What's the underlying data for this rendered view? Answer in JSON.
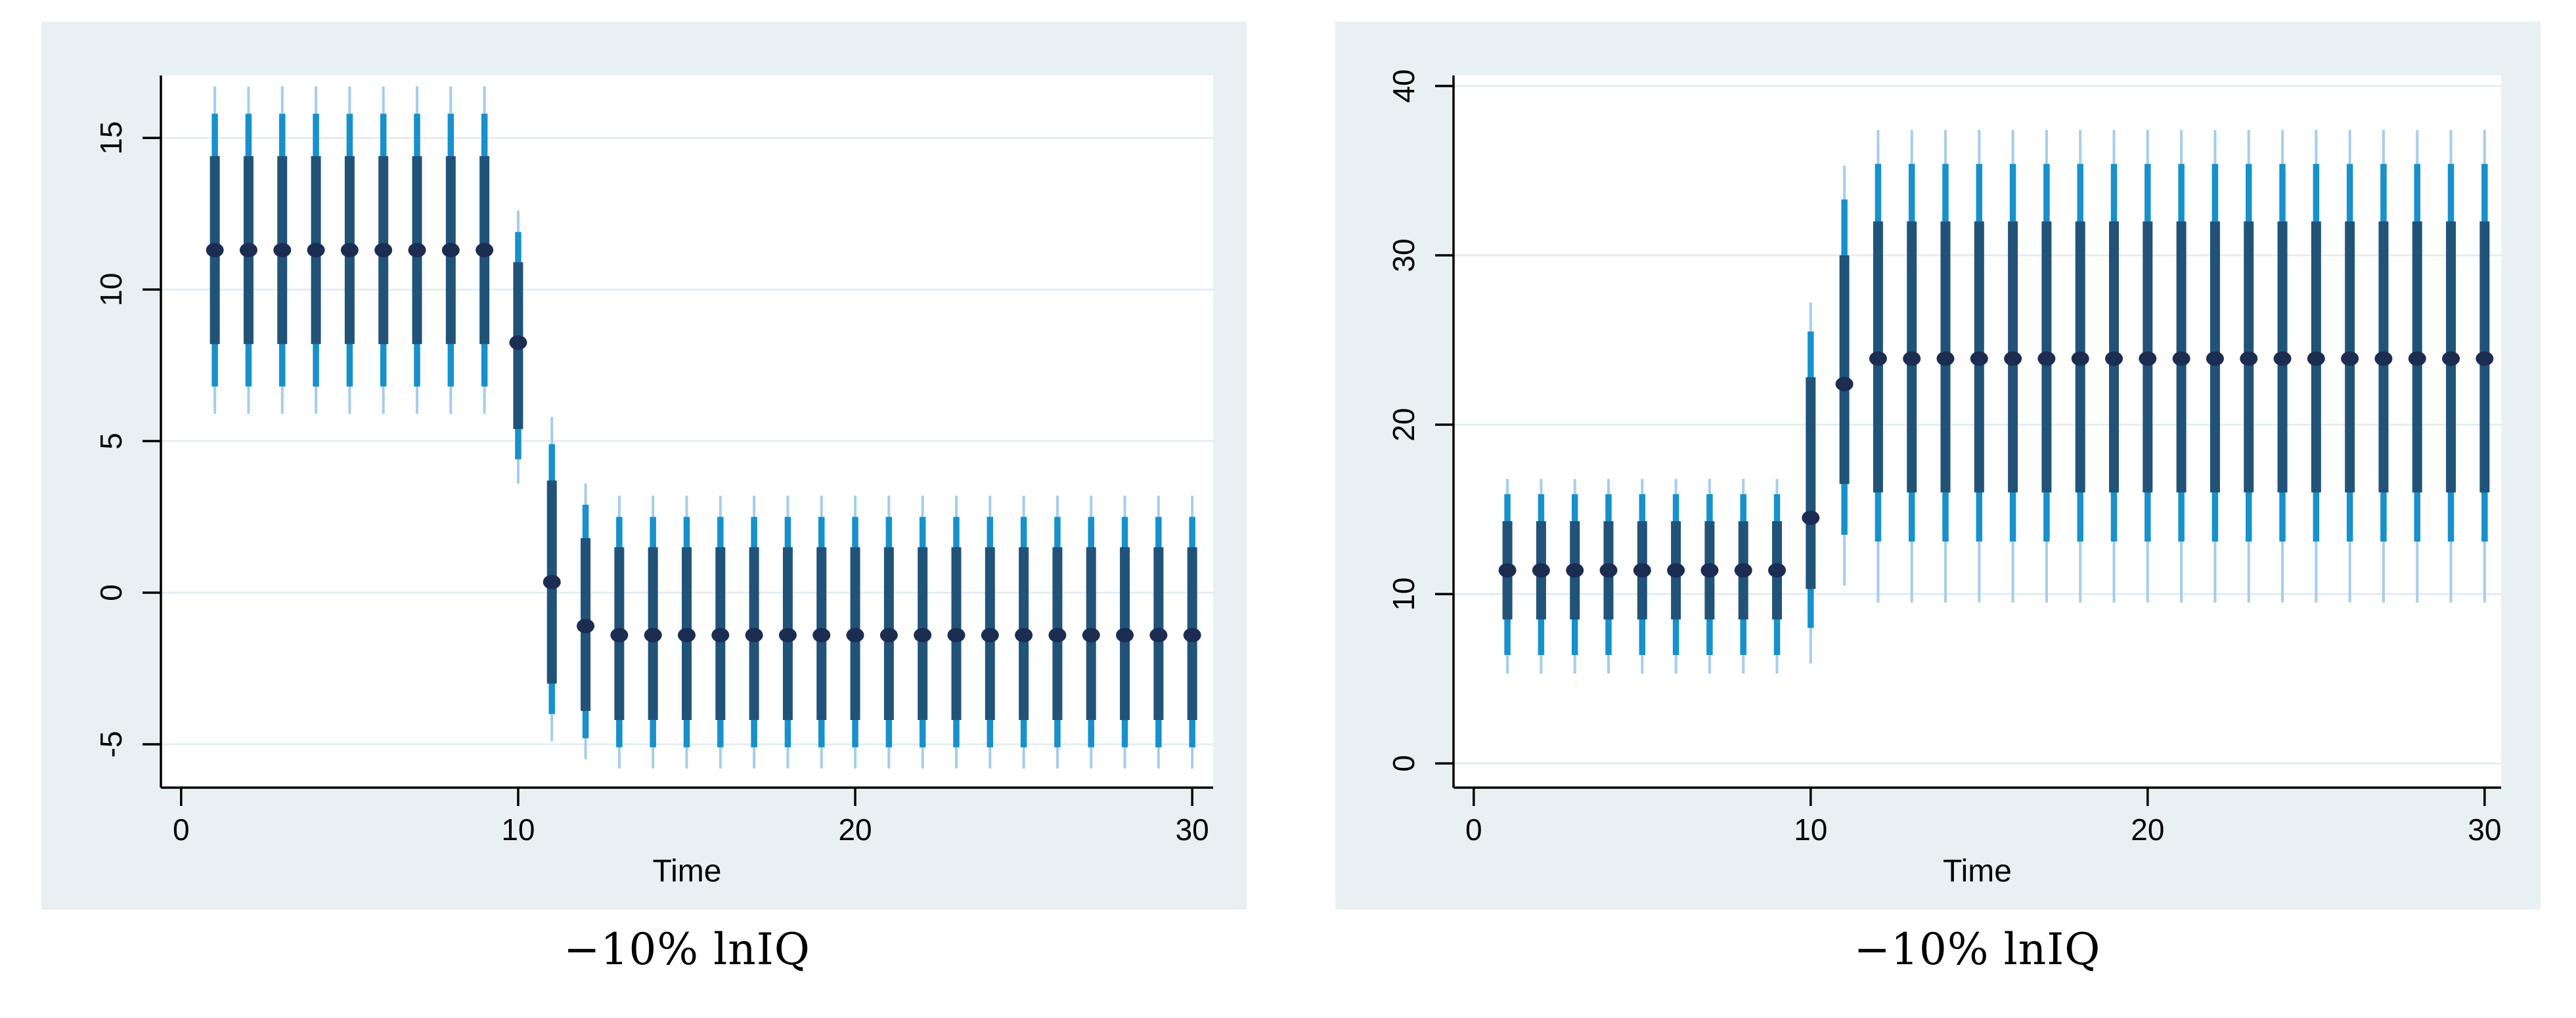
{
  "page": {
    "background": "#ffffff"
  },
  "style": {
    "panel_bg": "#e9f0f3",
    "plot_bg": "#ffffff",
    "gridline_color": "#e3ecf1",
    "axis_color": "#000000",
    "point_color": "#1c2d52",
    "inner_interval_color": "#215379",
    "mid_interval_color": "#1691cb",
    "outer_interval_color": "#a6cdea",
    "tick_label_color": "#000000"
  },
  "chart_data": [
    {
      "type": "errorbar",
      "caption": "−10% lnIQ",
      "xlabel": "Time",
      "ylabel": "",
      "legend": "none",
      "grid": true,
      "x_ticks": [
        0,
        10,
        20,
        30
      ],
      "y_ticks": [
        15,
        10,
        5,
        0,
        -5
      ],
      "xlim": [
        -0.6,
        30.62
      ],
      "ylim": [
        -6.43,
        17.06
      ],
      "points": [
        {
          "t": 1,
          "p": 11.3,
          "inner": [
            8.2,
            14.4
          ],
          "mid": [
            6.8,
            15.8
          ],
          "outer": [
            5.9,
            16.7
          ]
        },
        {
          "t": 2,
          "p": 11.3,
          "inner": [
            8.2,
            14.4
          ],
          "mid": [
            6.8,
            15.8
          ],
          "outer": [
            5.9,
            16.7
          ]
        },
        {
          "t": 3,
          "p": 11.3,
          "inner": [
            8.2,
            14.4
          ],
          "mid": [
            6.8,
            15.8
          ],
          "outer": [
            5.9,
            16.7
          ]
        },
        {
          "t": 4,
          "p": 11.3,
          "inner": [
            8.2,
            14.4
          ],
          "mid": [
            6.8,
            15.8
          ],
          "outer": [
            5.9,
            16.7
          ]
        },
        {
          "t": 5,
          "p": 11.3,
          "inner": [
            8.2,
            14.4
          ],
          "mid": [
            6.8,
            15.8
          ],
          "outer": [
            5.9,
            16.7
          ]
        },
        {
          "t": 6,
          "p": 11.3,
          "inner": [
            8.2,
            14.4
          ],
          "mid": [
            6.8,
            15.8
          ],
          "outer": [
            5.9,
            16.7
          ]
        },
        {
          "t": 7,
          "p": 11.3,
          "inner": [
            8.2,
            14.4
          ],
          "mid": [
            6.8,
            15.8
          ],
          "outer": [
            5.9,
            16.7
          ]
        },
        {
          "t": 8,
          "p": 11.3,
          "inner": [
            8.2,
            14.4
          ],
          "mid": [
            6.8,
            15.8
          ],
          "outer": [
            5.9,
            16.7
          ]
        },
        {
          "t": 9,
          "p": 11.3,
          "inner": [
            8.2,
            14.4
          ],
          "mid": [
            6.8,
            15.8
          ],
          "outer": [
            5.9,
            16.7
          ]
        },
        {
          "t": 10,
          "p": 8.25,
          "inner": [
            5.4,
            10.9
          ],
          "mid": [
            4.4,
            11.9
          ],
          "outer": [
            3.6,
            12.6
          ]
        },
        {
          "t": 11,
          "p": 0.35,
          "inner": [
            -3.0,
            3.7
          ],
          "mid": [
            -4.0,
            4.9
          ],
          "outer": [
            -4.9,
            5.8
          ]
        },
        {
          "t": 12,
          "p": -1.1,
          "inner": [
            -3.9,
            1.8
          ],
          "mid": [
            -4.8,
            2.9
          ],
          "outer": [
            -5.5,
            3.6
          ]
        },
        {
          "t": 13,
          "p": -1.4,
          "inner": [
            -4.2,
            1.5
          ],
          "mid": [
            -5.1,
            2.5
          ],
          "outer": [
            -5.8,
            3.2
          ]
        },
        {
          "t": 14,
          "p": -1.4,
          "inner": [
            -4.2,
            1.5
          ],
          "mid": [
            -5.1,
            2.5
          ],
          "outer": [
            -5.8,
            3.2
          ]
        },
        {
          "t": 15,
          "p": -1.4,
          "inner": [
            -4.2,
            1.5
          ],
          "mid": [
            -5.1,
            2.5
          ],
          "outer": [
            -5.8,
            3.2
          ]
        },
        {
          "t": 16,
          "p": -1.4,
          "inner": [
            -4.2,
            1.5
          ],
          "mid": [
            -5.1,
            2.5
          ],
          "outer": [
            -5.8,
            3.2
          ]
        },
        {
          "t": 17,
          "p": -1.4,
          "inner": [
            -4.2,
            1.5
          ],
          "mid": [
            -5.1,
            2.5
          ],
          "outer": [
            -5.8,
            3.2
          ]
        },
        {
          "t": 18,
          "p": -1.4,
          "inner": [
            -4.2,
            1.5
          ],
          "mid": [
            -5.1,
            2.5
          ],
          "outer": [
            -5.8,
            3.2
          ]
        },
        {
          "t": 19,
          "p": -1.4,
          "inner": [
            -4.2,
            1.5
          ],
          "mid": [
            -5.1,
            2.5
          ],
          "outer": [
            -5.8,
            3.2
          ]
        },
        {
          "t": 20,
          "p": -1.4,
          "inner": [
            -4.2,
            1.5
          ],
          "mid": [
            -5.1,
            2.5
          ],
          "outer": [
            -5.8,
            3.2
          ]
        },
        {
          "t": 21,
          "p": -1.4,
          "inner": [
            -4.2,
            1.5
          ],
          "mid": [
            -5.1,
            2.5
          ],
          "outer": [
            -5.8,
            3.2
          ]
        },
        {
          "t": 22,
          "p": -1.4,
          "inner": [
            -4.2,
            1.5
          ],
          "mid": [
            -5.1,
            2.5
          ],
          "outer": [
            -5.8,
            3.2
          ]
        },
        {
          "t": 23,
          "p": -1.4,
          "inner": [
            -4.2,
            1.5
          ],
          "mid": [
            -5.1,
            2.5
          ],
          "outer": [
            -5.8,
            3.2
          ]
        },
        {
          "t": 24,
          "p": -1.4,
          "inner": [
            -4.2,
            1.5
          ],
          "mid": [
            -5.1,
            2.5
          ],
          "outer": [
            -5.8,
            3.2
          ]
        },
        {
          "t": 25,
          "p": -1.4,
          "inner": [
            -4.2,
            1.5
          ],
          "mid": [
            -5.1,
            2.5
          ],
          "outer": [
            -5.8,
            3.2
          ]
        },
        {
          "t": 26,
          "p": -1.4,
          "inner": [
            -4.2,
            1.5
          ],
          "mid": [
            -5.1,
            2.5
          ],
          "outer": [
            -5.8,
            3.2
          ]
        },
        {
          "t": 27,
          "p": -1.4,
          "inner": [
            -4.2,
            1.5
          ],
          "mid": [
            -5.1,
            2.5
          ],
          "outer": [
            -5.8,
            3.2
          ]
        },
        {
          "t": 28,
          "p": -1.4,
          "inner": [
            -4.2,
            1.5
          ],
          "mid": [
            -5.1,
            2.5
          ],
          "outer": [
            -5.8,
            3.2
          ]
        },
        {
          "t": 29,
          "p": -1.4,
          "inner": [
            -4.2,
            1.5
          ],
          "mid": [
            -5.1,
            2.5
          ],
          "outer": [
            -5.8,
            3.2
          ]
        },
        {
          "t": 30,
          "p": -1.4,
          "inner": [
            -4.2,
            1.5
          ],
          "mid": [
            -5.1,
            2.5
          ],
          "outer": [
            -5.8,
            3.2
          ]
        }
      ]
    },
    {
      "type": "errorbar",
      "caption": "−10% lnIQ",
      "xlabel": "Time",
      "ylabel": "",
      "legend": "none",
      "grid": true,
      "x_ticks": [
        0,
        10,
        20,
        30
      ],
      "y_ticks": [
        40,
        30,
        20,
        10,
        0
      ],
      "xlim": [
        -0.6,
        30.49
      ],
      "ylim": [
        -1.43,
        40.62
      ],
      "points": [
        {
          "t": 1,
          "p": 11.4,
          "inner": [
            8.5,
            14.3
          ],
          "mid": [
            6.4,
            15.9
          ],
          "outer": [
            5.3,
            16.8
          ]
        },
        {
          "t": 2,
          "p": 11.4,
          "inner": [
            8.5,
            14.3
          ],
          "mid": [
            6.4,
            15.9
          ],
          "outer": [
            5.3,
            16.8
          ]
        },
        {
          "t": 3,
          "p": 11.4,
          "inner": [
            8.5,
            14.3
          ],
          "mid": [
            6.4,
            15.9
          ],
          "outer": [
            5.3,
            16.8
          ]
        },
        {
          "t": 4,
          "p": 11.4,
          "inner": [
            8.5,
            14.3
          ],
          "mid": [
            6.4,
            15.9
          ],
          "outer": [
            5.3,
            16.8
          ]
        },
        {
          "t": 5,
          "p": 11.4,
          "inner": [
            8.5,
            14.3
          ],
          "mid": [
            6.4,
            15.9
          ],
          "outer": [
            5.3,
            16.8
          ]
        },
        {
          "t": 6,
          "p": 11.4,
          "inner": [
            8.5,
            14.3
          ],
          "mid": [
            6.4,
            15.9
          ],
          "outer": [
            5.3,
            16.8
          ]
        },
        {
          "t": 7,
          "p": 11.4,
          "inner": [
            8.5,
            14.3
          ],
          "mid": [
            6.4,
            15.9
          ],
          "outer": [
            5.3,
            16.8
          ]
        },
        {
          "t": 8,
          "p": 11.4,
          "inner": [
            8.5,
            14.3
          ],
          "mid": [
            6.4,
            15.9
          ],
          "outer": [
            5.3,
            16.8
          ]
        },
        {
          "t": 9,
          "p": 11.4,
          "inner": [
            8.5,
            14.3
          ],
          "mid": [
            6.4,
            15.9
          ],
          "outer": [
            5.3,
            16.8
          ]
        },
        {
          "t": 10,
          "p": 14.5,
          "inner": [
            10.3,
            22.8
          ],
          "mid": [
            8.0,
            25.5
          ],
          "outer": [
            5.9,
            27.2
          ]
        },
        {
          "t": 11,
          "p": 22.4,
          "inner": [
            16.5,
            30.0
          ],
          "mid": [
            13.5,
            33.3
          ],
          "outer": [
            10.5,
            35.3
          ]
        },
        {
          "t": 12,
          "p": 23.9,
          "inner": [
            16.0,
            32.0
          ],
          "mid": [
            13.1,
            35.4
          ],
          "outer": [
            9.5,
            37.4
          ]
        },
        {
          "t": 13,
          "p": 23.9,
          "inner": [
            16.0,
            32.0
          ],
          "mid": [
            13.1,
            35.4
          ],
          "outer": [
            9.5,
            37.4
          ]
        },
        {
          "t": 14,
          "p": 23.9,
          "inner": [
            16.0,
            32.0
          ],
          "mid": [
            13.1,
            35.4
          ],
          "outer": [
            9.5,
            37.4
          ]
        },
        {
          "t": 15,
          "p": 23.9,
          "inner": [
            16.0,
            32.0
          ],
          "mid": [
            13.1,
            35.4
          ],
          "outer": [
            9.5,
            37.4
          ]
        },
        {
          "t": 16,
          "p": 23.9,
          "inner": [
            16.0,
            32.0
          ],
          "mid": [
            13.1,
            35.4
          ],
          "outer": [
            9.5,
            37.4
          ]
        },
        {
          "t": 17,
          "p": 23.9,
          "inner": [
            16.0,
            32.0
          ],
          "mid": [
            13.1,
            35.4
          ],
          "outer": [
            9.5,
            37.4
          ]
        },
        {
          "t": 18,
          "p": 23.9,
          "inner": [
            16.0,
            32.0
          ],
          "mid": [
            13.1,
            35.4
          ],
          "outer": [
            9.5,
            37.4
          ]
        },
        {
          "t": 19,
          "p": 23.9,
          "inner": [
            16.0,
            32.0
          ],
          "mid": [
            13.1,
            35.4
          ],
          "outer": [
            9.5,
            37.4
          ]
        },
        {
          "t": 20,
          "p": 23.9,
          "inner": [
            16.0,
            32.0
          ],
          "mid": [
            13.1,
            35.4
          ],
          "outer": [
            9.5,
            37.4
          ]
        },
        {
          "t": 21,
          "p": 23.9,
          "inner": [
            16.0,
            32.0
          ],
          "mid": [
            13.1,
            35.4
          ],
          "outer": [
            9.5,
            37.4
          ]
        },
        {
          "t": 22,
          "p": 23.9,
          "inner": [
            16.0,
            32.0
          ],
          "mid": [
            13.1,
            35.4
          ],
          "outer": [
            9.5,
            37.4
          ]
        },
        {
          "t": 23,
          "p": 23.9,
          "inner": [
            16.0,
            32.0
          ],
          "mid": [
            13.1,
            35.4
          ],
          "outer": [
            9.5,
            37.4
          ]
        },
        {
          "t": 24,
          "p": 23.9,
          "inner": [
            16.0,
            32.0
          ],
          "mid": [
            13.1,
            35.4
          ],
          "outer": [
            9.5,
            37.4
          ]
        },
        {
          "t": 25,
          "p": 23.9,
          "inner": [
            16.0,
            32.0
          ],
          "mid": [
            13.1,
            35.4
          ],
          "outer": [
            9.5,
            37.4
          ]
        },
        {
          "t": 26,
          "p": 23.9,
          "inner": [
            16.0,
            32.0
          ],
          "mid": [
            13.1,
            35.4
          ],
          "outer": [
            9.5,
            37.4
          ]
        },
        {
          "t": 27,
          "p": 23.9,
          "inner": [
            16.0,
            32.0
          ],
          "mid": [
            13.1,
            35.4
          ],
          "outer": [
            9.5,
            37.4
          ]
        },
        {
          "t": 28,
          "p": 23.9,
          "inner": [
            16.0,
            32.0
          ],
          "mid": [
            13.1,
            35.4
          ],
          "outer": [
            9.5,
            37.4
          ]
        },
        {
          "t": 29,
          "p": 23.9,
          "inner": [
            16.0,
            32.0
          ],
          "mid": [
            13.1,
            35.4
          ],
          "outer": [
            9.5,
            37.4
          ]
        },
        {
          "t": 30,
          "p": 23.9,
          "inner": [
            16.0,
            32.0
          ],
          "mid": [
            13.1,
            35.4
          ],
          "outer": [
            9.5,
            37.4
          ]
        }
      ]
    }
  ]
}
